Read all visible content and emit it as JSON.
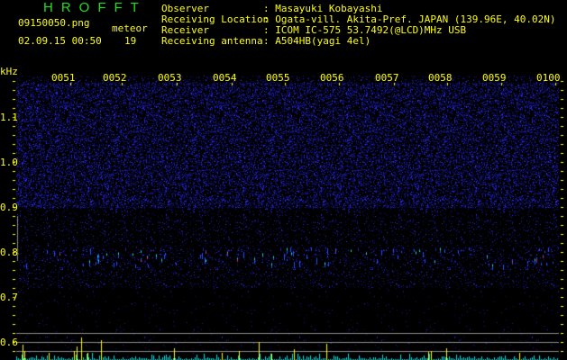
{
  "header": {
    "logo": "HROFFT",
    "filename": "09150050.png",
    "datetime": "02.09.15 00:50",
    "meteor_label": "meteor",
    "meteor_count": "19",
    "info": [
      {
        "label": "Observer",
        "value": ": Masayuki Kobayashi"
      },
      {
        "label": "Receiving Location",
        "value": ": Ogata-vill. Akita-Pref. JAPAN (139.96E, 40.02N)"
      },
      {
        "label": "Receiver",
        "value": ": ICOM IC-575 53.7492(@LCD)MHz USB"
      },
      {
        "label": "Receiving antenna",
        "value": ": A504HB(yagi 4el)"
      }
    ]
  },
  "chart_data": {
    "type": "heatmap",
    "ylabel": "kHz",
    "x_ticks": [
      "0051",
      "0052",
      "0053",
      "0054",
      "0055",
      "0056",
      "0057",
      "0058",
      "0059",
      "0100"
    ],
    "y_ticks": [
      "1.1",
      "1.0",
      "0.9",
      "0.8",
      "0.7",
      "0.6"
    ],
    "echo_band_khz": [
      0.76,
      0.8
    ],
    "colors": {
      "noise": "#1a1aa0",
      "text": "#ffff00",
      "logo": "#22dd22",
      "bars_low": "#00e0e0",
      "bars_high": "#ffff00",
      "grid": "#888888"
    }
  }
}
